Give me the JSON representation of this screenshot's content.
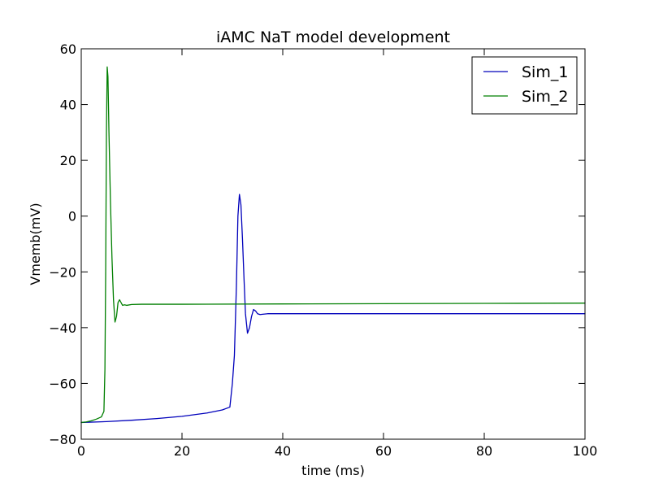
{
  "chart_data": {
    "type": "line",
    "title": "iAMC NaT model development",
    "xlabel": "time (ms)",
    "ylabel": "Vmemb(mV)",
    "xlim": [
      0,
      100
    ],
    "ylim": [
      -80,
      60
    ],
    "xticks": [
      0,
      20,
      40,
      60,
      80,
      100
    ],
    "yticks": [
      -80,
      -60,
      -40,
      -20,
      0,
      20,
      40,
      60
    ],
    "xtick_labels": [
      "0",
      "20",
      "40",
      "60",
      "80",
      "100"
    ],
    "ytick_labels": [
      "−80",
      "−60",
      "−40",
      "−20",
      "0",
      "20",
      "40",
      "60"
    ],
    "grid": false,
    "legend_position": "top-right",
    "series": [
      {
        "name": "Sim_1",
        "color": "#0000bb",
        "x": [
          0,
          5,
          10,
          15,
          20,
          25,
          28,
          29.5,
          30,
          30.4,
          30.8,
          31.1,
          31.4,
          31.7,
          32.0,
          32.3,
          32.6,
          33.0,
          33.4,
          33.8,
          34.2,
          34.6,
          35.0,
          35.5,
          36,
          37,
          38,
          40,
          50,
          60,
          70,
          80,
          90,
          100
        ],
        "y": [
          -74,
          -73.7,
          -73.2,
          -72.6,
          -71.8,
          -70.6,
          -69.5,
          -68.5,
          -60,
          -50,
          -25,
          0,
          7.8,
          4,
          -8,
          -22,
          -35,
          -42,
          -40,
          -36,
          -33.5,
          -34,
          -35,
          -35.3,
          -35.2,
          -35,
          -35,
          -35,
          -35,
          -35,
          -35,
          -35,
          -35,
          -35
        ]
      },
      {
        "name": "Sim_2",
        "color": "#007f00",
        "x": [
          0,
          1,
          2,
          3,
          4,
          4.5,
          4.7,
          4.85,
          5.0,
          5.15,
          5.3,
          5.5,
          5.8,
          6.1,
          6.4,
          6.7,
          7.0,
          7.3,
          7.6,
          7.9,
          8.2,
          8.6,
          9.0,
          10,
          12,
          20,
          40,
          60,
          80,
          100
        ],
        "y": [
          -74,
          -73.8,
          -73.4,
          -72.8,
          -72,
          -70,
          -55,
          -20,
          30,
          53.5,
          50,
          30,
          5,
          -15,
          -30,
          -38,
          -36,
          -31,
          -30,
          -31,
          -32,
          -31.8,
          -32,
          -31.7,
          -31.6,
          -31.6,
          -31.5,
          -31.4,
          -31.3,
          -31.2
        ]
      }
    ]
  }
}
